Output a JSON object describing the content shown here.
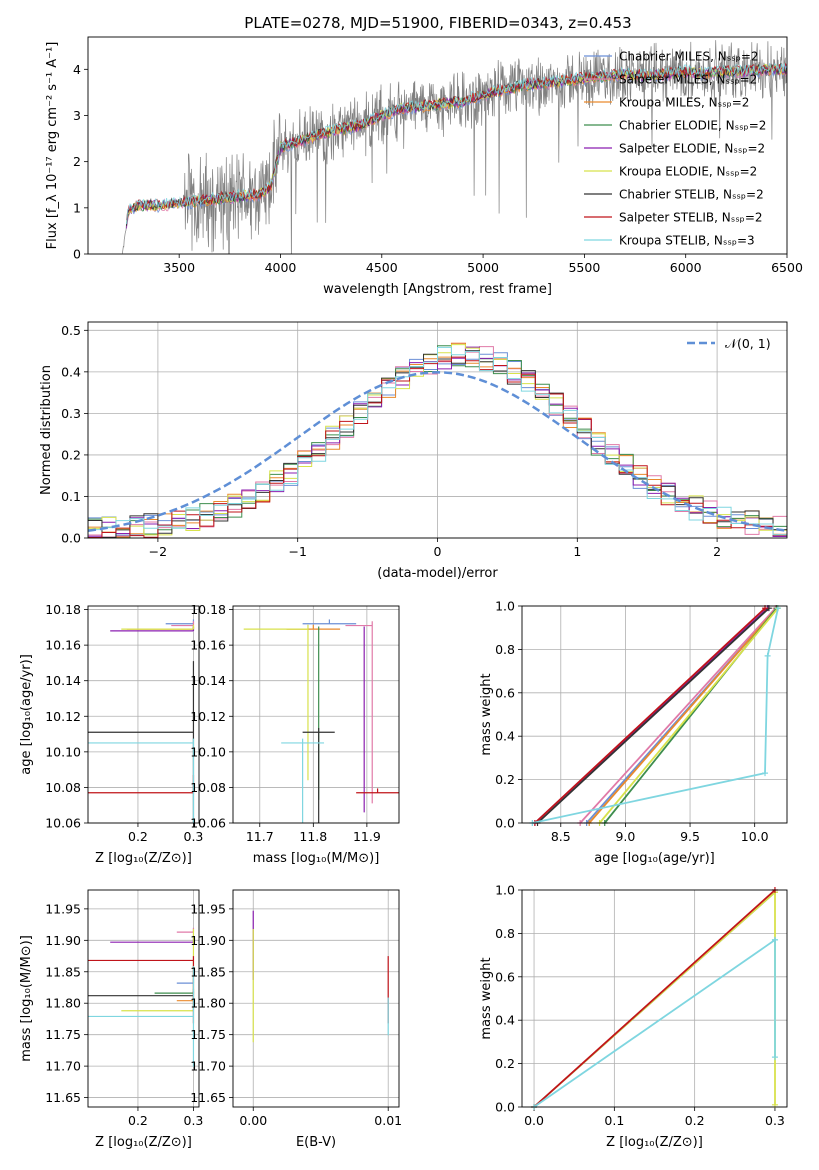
{
  "figure_title": "PLATE=0278, MJD=51900, FIBERID=0343, z=0.453",
  "series_styles": [
    {
      "name": "Chabrier MILES, N_SSP=2",
      "color": "#6b8fd6"
    },
    {
      "name": "Salpeter MILES, N_SSP=2",
      "color": "#e07aa8"
    },
    {
      "name": "Kroupa MILES, N_SSP=2",
      "color": "#e98a2d"
    },
    {
      "name": "Chabrier ELODIE, N_SSP=2",
      "color": "#3e8e4e"
    },
    {
      "name": "Salpeter ELODIE, N_SSP=2",
      "color": "#8b1fb0"
    },
    {
      "name": "Kroupa ELODIE, N_SSP=2",
      "color": "#d8e24c"
    },
    {
      "name": "Chabrier STELIB, N_SSP=2",
      "color": "#333333"
    },
    {
      "name": "Salpeter STELIB, N_SSP=2",
      "color": "#c0141a"
    },
    {
      "name": "Kroupa STELIB, N_SSP=3",
      "color": "#7fd6e0"
    }
  ],
  "chart_data": [
    {
      "id": "spectrum",
      "type": "line",
      "xlabel": "wavelength [Angstrom, rest frame]",
      "ylabel": "Flux [f_λ 10^-17 erg cm^-2 s^-1 A^-1]",
      "xlim": [
        3050,
        6500
      ],
      "ylim": [
        0,
        4.7
      ],
      "xticks": [
        3500,
        4000,
        4500,
        5000,
        5500,
        6000,
        6500
      ],
      "yticks": [
        0,
        1,
        2,
        3,
        4
      ],
      "observed_color": "#808080",
      "legend": [
        "Chabrier MILES, N_SSP=2",
        "Salpeter MILES, N_SSP=2",
        "Kroupa MILES, N_SSP=2",
        "Chabrier ELODIE, N_SSP=2",
        "Salpeter ELODIE, N_SSP=2",
        "Kroupa ELODIE, N_SSP=2",
        "Chabrier STELIB, N_SSP=2",
        "Salpeter STELIB, N_SSP=2",
        "Kroupa STELIB, N_SSP=3"
      ],
      "continuum": {
        "x": [
          3220,
          3250,
          3300,
          3400,
          3500,
          3600,
          3700,
          3800,
          3900,
          3950,
          4000,
          4050,
          4100,
          4200,
          4300,
          4400,
          4500,
          4600,
          4700,
          4800,
          4900,
          5000,
          5100,
          5200,
          5300,
          5400,
          5500,
          5600,
          5700,
          5800,
          5900,
          6000,
          6100,
          6200,
          6300,
          6400
        ],
        "y": [
          0.0,
          0.95,
          1.05,
          1.05,
          1.1,
          1.15,
          1.2,
          1.25,
          1.3,
          1.45,
          2.3,
          2.4,
          2.45,
          2.6,
          2.7,
          2.8,
          3.0,
          3.15,
          3.2,
          3.25,
          3.3,
          3.45,
          3.55,
          3.65,
          3.7,
          3.75,
          3.8,
          3.85,
          3.9,
          3.85,
          3.9,
          3.95,
          3.9,
          3.95,
          3.95,
          4.0
        ]
      }
    },
    {
      "id": "residuals",
      "type": "bar",
      "xlabel": "(data-model)/error",
      "ylabel": "Normed distribution",
      "xlim": [
        -2.5,
        2.5
      ],
      "ylim": [
        0,
        0.52
      ],
      "xticks": [
        -2,
        -1,
        0,
        1,
        2
      ],
      "yticks": [
        0.0,
        0.1,
        0.2,
        0.3,
        0.4,
        0.5
      ],
      "legend": [
        "𝒩(0, 1)"
      ],
      "gaussian": {
        "mean": 0,
        "sigma": 1,
        "color": "#5f8fd6"
      },
      "bin_width": 0.1,
      "bin_start": -2.5
    },
    {
      "id": "age_vs_Z",
      "type": "scatter",
      "xlabel": "Z [log10(Z/Z_⊙)]",
      "ylabel": "age  [log10(age/yr)]",
      "xlim": [
        0.11,
        0.31
      ],
      "ylim": [
        10.06,
        10.182
      ],
      "xticks": [
        0.2,
        0.3
      ],
      "yticks": [
        10.06,
        10.08,
        10.1,
        10.12,
        10.14,
        10.16,
        10.18
      ],
      "points": [
        {
          "series": 0,
          "x": 0.3,
          "y": 10.172,
          "xerr": [
            0.05,
            0.0
          ],
          "yerr": [
            0.0,
            0.0
          ]
        },
        {
          "series": 1,
          "x": 0.3,
          "y": 10.171,
          "xerr": [
            0.04,
            0.0
          ],
          "yerr": [
            0.0,
            0.0
          ]
        },
        {
          "series": 2,
          "x": 0.3,
          "y": 10.169,
          "xerr": [
            0.12,
            0.0
          ],
          "yerr": [
            0.0,
            0.0
          ]
        },
        {
          "series": 3,
          "x": 0.3,
          "y": 10.168,
          "xerr": [
            0.0,
            0.0
          ],
          "yerr": [
            0.0,
            0.0
          ]
        },
        {
          "series": 4,
          "x": 0.3,
          "y": 10.168,
          "xerr": [
            0.15,
            0.0
          ],
          "yerr": [
            0.0,
            0.0
          ]
        },
        {
          "series": 5,
          "x": 0.3,
          "y": 10.169,
          "xerr": [
            0.13,
            0.0
          ],
          "yerr": [
            0.0,
            0.0
          ]
        },
        {
          "series": 6,
          "x": 0.3,
          "y": 10.111,
          "xerr": [
            0.19,
            0.0
          ],
          "yerr": [
            0.04,
            0.065
          ]
        },
        {
          "series": 7,
          "x": 0.3,
          "y": 10.077,
          "xerr": [
            0.19,
            0.0
          ],
          "yerr": [
            0.01,
            0.0
          ]
        },
        {
          "series": 8,
          "x": 0.3,
          "y": 10.105,
          "xerr": [
            0.19,
            0.0
          ],
          "yerr": [
            0.0,
            0.07
          ]
        }
      ]
    },
    {
      "id": "age_vs_mass",
      "type": "scatter",
      "xlabel": "mass [log10(M/M_⊙)]",
      "ylabel": "",
      "xlim": [
        11.65,
        11.96
      ],
      "ylim": [
        10.06,
        10.182
      ],
      "xticks": [
        11.7,
        11.8,
        11.9
      ],
      "yticks": [
        10.06,
        10.08,
        10.1,
        10.12,
        10.14,
        10.16,
        10.18
      ],
      "points": [
        {
          "series": 0,
          "x": 11.83,
          "y": 10.172,
          "xerr": [
            0.05,
            0.05
          ],
          "yerr": [
            0.0,
            0.0
          ]
        },
        {
          "series": 1,
          "x": 11.91,
          "y": 10.171,
          "xerr": [
            0.05,
            0.0
          ],
          "yerr": [
            0.0,
            0.1
          ]
        },
        {
          "series": 2,
          "x": 11.8,
          "y": 10.169,
          "xerr": [
            0.05,
            0.05
          ],
          "yerr": [
            0.0,
            0.0
          ]
        },
        {
          "series": 3,
          "x": 11.81,
          "y": 10.168,
          "xerr": [
            0.0,
            0.0
          ],
          "yerr": [
            0.0,
            0.095
          ]
        },
        {
          "series": 4,
          "x": 11.895,
          "y": 10.168,
          "xerr": [
            0.0,
            0.0
          ],
          "yerr": [
            0.0,
            0.102
          ]
        },
        {
          "series": 5,
          "x": 11.79,
          "y": 10.169,
          "xerr": [
            0.12,
            0.0
          ],
          "yerr": [
            0.0,
            0.085
          ]
        },
        {
          "series": 6,
          "x": 11.81,
          "y": 10.111,
          "xerr": [
            0.03,
            0.03
          ],
          "yerr": [
            0.0,
            0.06
          ]
        },
        {
          "series": 7,
          "x": 11.92,
          "y": 10.077,
          "xerr": [
            0.04,
            0.04
          ],
          "yerr": [
            0.0,
            0.0
          ]
        },
        {
          "series": 8,
          "x": 11.78,
          "y": 10.105,
          "xerr": [
            0.04,
            0.04
          ],
          "yerr": [
            0.0,
            0.07
          ]
        }
      ]
    },
    {
      "id": "cum_mass_age",
      "type": "line",
      "xlabel": "age  [log10(age/yr)]",
      "ylabel": "mass weight",
      "xlim": [
        8.2,
        10.25
      ],
      "ylim": [
        0,
        1.0
      ],
      "xticks": [
        8.5,
        9.0,
        9.5,
        10.0
      ],
      "yticks": [
        0.0,
        0.2,
        0.4,
        0.6,
        0.8,
        1.0
      ],
      "lines": [
        {
          "series": 0,
          "x": [
            8.7,
            10.17
          ],
          "y": [
            0.0,
            0.99
          ]
        },
        {
          "series": 1,
          "x": [
            8.65,
            10.16
          ],
          "y": [
            0.0,
            0.99
          ]
        },
        {
          "series": 2,
          "x": [
            8.72,
            10.17
          ],
          "y": [
            0.0,
            0.99
          ]
        },
        {
          "series": 3,
          "x": [
            8.84,
            10.17
          ],
          "y": [
            0.0,
            0.99
          ]
        },
        {
          "series": 4,
          "x": [
            8.3,
            10.1
          ],
          "y": [
            0.0,
            0.99
          ]
        },
        {
          "series": 5,
          "x": [
            8.8,
            10.18
          ],
          "y": [
            0.0,
            0.99
          ]
        },
        {
          "series": 6,
          "x": [
            8.32,
            10.11
          ],
          "y": [
            0.0,
            0.99
          ]
        },
        {
          "series": 7,
          "x": [
            8.3,
            10.08
          ],
          "y": [
            0.0,
            0.99
          ]
        },
        {
          "series": 8,
          "x": [
            8.28,
            10.08,
            10.1,
            10.18
          ],
          "y": [
            0.0,
            0.23,
            0.77,
            0.99
          ]
        }
      ]
    },
    {
      "id": "mass_vs_Z",
      "type": "scatter",
      "xlabel": "Z [log10(Z/Z_⊙)]",
      "ylabel": "mass [log10(M/M_⊙)]",
      "xlim": [
        0.11,
        0.31
      ],
      "ylim": [
        11.635,
        11.98
      ],
      "xticks": [
        0.2,
        0.3
      ],
      "yticks": [
        11.65,
        11.7,
        11.75,
        11.8,
        11.85,
        11.9,
        11.95
      ],
      "points": [
        {
          "series": 0,
          "x": 0.3,
          "y": 11.832,
          "xerr": [
            0.03,
            0.0
          ],
          "yerr": [
            0.0,
            0.0
          ]
        },
        {
          "series": 1,
          "x": 0.3,
          "y": 11.913,
          "xerr": [
            0.03,
            0.0
          ],
          "yerr": [
            0.0,
            0.0
          ]
        },
        {
          "series": 2,
          "x": 0.3,
          "y": 11.804,
          "xerr": [
            0.03,
            0.0
          ],
          "yerr": [
            0.0,
            0.0
          ]
        },
        {
          "series": 3,
          "x": 0.3,
          "y": 11.816,
          "xerr": [
            0.07,
            0.0
          ],
          "yerr": [
            0.0,
            0.0
          ]
        },
        {
          "series": 4,
          "x": 0.3,
          "y": 11.897,
          "xerr": [
            0.15,
            0.0
          ],
          "yerr": [
            0.0,
            0.0
          ]
        },
        {
          "series": 5,
          "x": 0.3,
          "y": 11.788,
          "xerr": [
            0.13,
            0.0
          ],
          "yerr": [
            0.13,
            0.0
          ]
        },
        {
          "series": 6,
          "x": 0.3,
          "y": 11.812,
          "xerr": [
            0.19,
            0.0
          ],
          "yerr": [
            0.0,
            0.0
          ]
        },
        {
          "series": 7,
          "x": 0.3,
          "y": 11.868,
          "xerr": [
            0.19,
            0.0
          ],
          "yerr": [
            0.0,
            0.1
          ]
        },
        {
          "series": 8,
          "x": 0.3,
          "y": 11.779,
          "xerr": [
            0.19,
            0.0
          ],
          "yerr": [
            0.08,
            0.08
          ]
        }
      ]
    },
    {
      "id": "mass_vs_ebv",
      "type": "scatter",
      "xlabel": "E(B-V)",
      "ylabel": "",
      "xlim": [
        -0.0015,
        0.0108
      ],
      "ylim": [
        11.635,
        11.98
      ],
      "xticks": [
        0.0,
        0.01
      ],
      "yticks": [
        11.65,
        11.7,
        11.75,
        11.8,
        11.85,
        11.9,
        11.95
      ],
      "points": [
        {
          "series": 4,
          "x": 0.0,
          "y": 11.897,
          "xerr": [
            0.0,
            0.0
          ],
          "yerr": [
            0.05,
            0.06
          ]
        },
        {
          "series": 5,
          "x": 0.0,
          "y": 11.788,
          "xerr": [
            0.0,
            0.0
          ],
          "yerr": [
            0.13,
            0.05
          ]
        },
        {
          "series": 7,
          "x": 0.01,
          "y": 11.868,
          "xerr": [
            0.0,
            0.0
          ],
          "yerr": [
            0.0,
            0.1
          ]
        },
        {
          "series": 8,
          "x": 0.01,
          "y": 11.779,
          "xerr": [
            0.0,
            0.0
          ],
          "yerr": [
            0.03,
            0.03
          ]
        }
      ]
    },
    {
      "id": "cum_mass_Z",
      "type": "line",
      "xlabel": "Z [log10(Z/Z_⊙)]",
      "ylabel": "mass weight",
      "xlim": [
        -0.015,
        0.315
      ],
      "ylim": [
        0,
        1.0
      ],
      "xticks": [
        0.0,
        0.1,
        0.2,
        0.3
      ],
      "yticks": [
        0.0,
        0.2,
        0.4,
        0.6,
        0.8,
        1.0
      ],
      "lines": [
        {
          "series": 0,
          "x": [
            0.0,
            0.3
          ],
          "y": [
            0.0,
            0.99
          ]
        },
        {
          "series": 5,
          "x": [
            0.0,
            0.3,
            0.3,
            0.3
          ],
          "y": [
            0.0,
            0.99,
            0.01,
            0.99
          ]
        },
        {
          "series": 7,
          "x": [
            0.0,
            0.3
          ],
          "y": [
            0.0,
            1.0
          ]
        },
        {
          "series": 8,
          "x": [
            0.0,
            0.3,
            0.3,
            0.3
          ],
          "y": [
            0.0,
            0.77,
            0.23,
            0.77
          ]
        }
      ]
    }
  ]
}
